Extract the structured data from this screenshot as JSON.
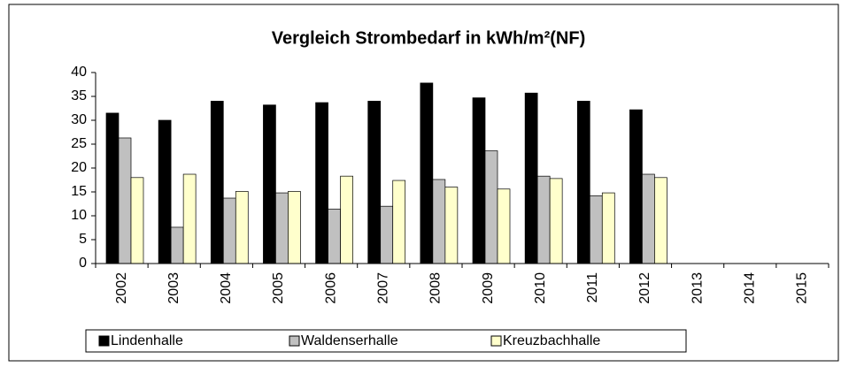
{
  "chart_data": {
    "type": "bar",
    "title": "Vergleich Strombedarf in kWh/m²(NF)",
    "categories": [
      "2002",
      "2003",
      "2004",
      "2005",
      "2006",
      "2007",
      "2008",
      "2009",
      "2010",
      "2011",
      "2012",
      "2013",
      "2014",
      "2015"
    ],
    "series": [
      {
        "name": "Lindenhalle",
        "color": "#000000",
        "values": [
          31.5,
          30,
          34,
          33.2,
          33.7,
          34,
          37.8,
          34.7,
          35.7,
          34,
          32.2,
          null,
          null,
          null
        ]
      },
      {
        "name": "Waldenserhalle",
        "color": "#c0c0c0",
        "values": [
          26.3,
          7.6,
          13.7,
          14.8,
          11.4,
          12,
          17.6,
          23.6,
          18.3,
          14.2,
          18.7,
          null,
          null,
          null
        ]
      },
      {
        "name": "Kreuzbachhalle",
        "color": "#ffffcc",
        "values": [
          18,
          18.7,
          15.1,
          15.1,
          18.3,
          17.4,
          16,
          15.6,
          17.8,
          14.8,
          18,
          null,
          null,
          null
        ]
      }
    ],
    "ylim": [
      0,
      40
    ],
    "yticks": [
      0,
      5,
      10,
      15,
      20,
      25,
      30,
      35,
      40
    ],
    "grid": false,
    "legend": "bottom"
  }
}
